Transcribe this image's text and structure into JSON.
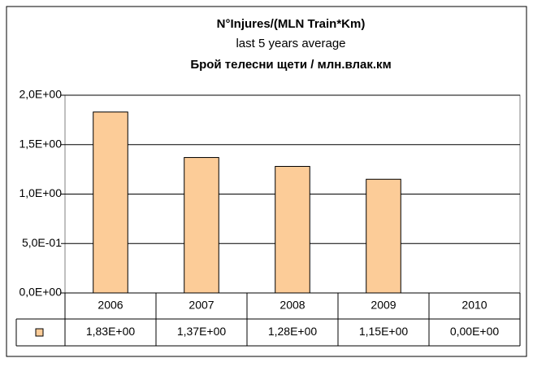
{
  "chart_data": {
    "type": "bar",
    "title": "N°Injures/(MLN Train*Km)",
    "subtitle": "last 5 years average",
    "title_bg": "Брой телесни щети / млн.влак.км",
    "categories": [
      "2006",
      "2007",
      "2008",
      "2009",
      "2010"
    ],
    "values": [
      1.83,
      1.37,
      1.28,
      1.15,
      0
    ],
    "value_labels": [
      "1,83E+00",
      "1,37E+00",
      "1,28E+00",
      "1,15E+00",
      "0,00E+00"
    ],
    "color": "#fccc98",
    "ylim": [
      0,
      2
    ],
    "yticks": [
      {
        "value": 0,
        "label": "0,0E+00"
      },
      {
        "value": 0.5,
        "label": "5,0E-01"
      },
      {
        "value": 1,
        "label": "1,0E+00"
      },
      {
        "value": 1.5,
        "label": "1,5E+00"
      },
      {
        "value": 2,
        "label": "2,0E+00"
      }
    ],
    "grid": true
  }
}
